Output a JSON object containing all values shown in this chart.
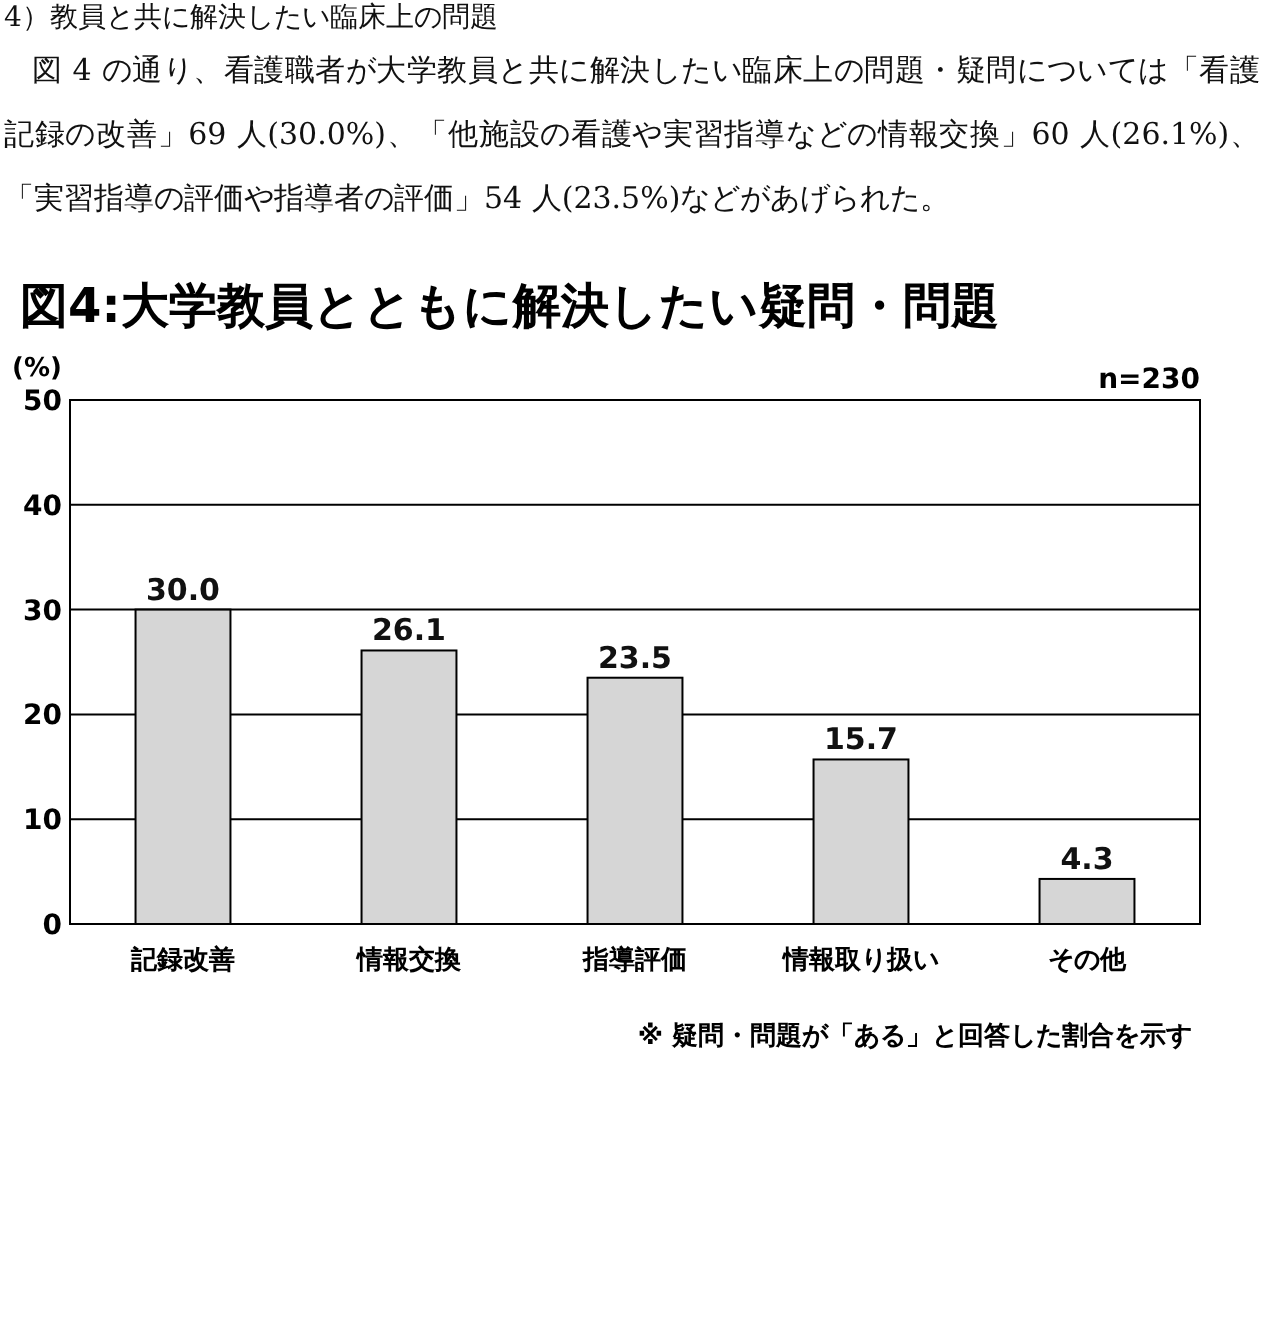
{
  "chart_data": {
    "type": "bar",
    "title": "図4:大学教員とともに解決したい疑問・問題",
    "ylabel": "(%)",
    "categories": [
      "記録改善",
      "情報交換",
      "指導評価",
      "情報取り扱い",
      "その他"
    ],
    "values": [
      30.0,
      26.1,
      23.5,
      15.7,
      4.3
    ],
    "value_labels": [
      "30.0",
      "26.1",
      "23.5",
      "15.7",
      "4.3"
    ],
    "color": "#d6d6d6",
    "ylim": [
      0,
      50
    ],
    "yticks": [
      0,
      10,
      20,
      30,
      40,
      50
    ],
    "grid": "y",
    "annotations": [
      "4）教員と共に解決したい臨床上の問題",
      "図 4 の通り、看護職者が大学教員と共に解決したい臨床上の問題・疑問については「看護記録の改善」69 人(30.0%)、「他施設の看護や実習指導などの情報交換」60 人(26.1%)、「実習指導の評価や指導者の評価」54 人(23.5%)などがあげられた。",
      "n=230",
      "※ 疑問・問題が「ある」と回答した割合を示す"
    ]
  }
}
